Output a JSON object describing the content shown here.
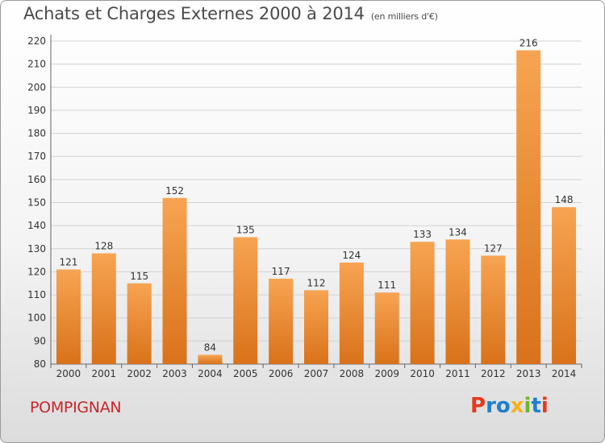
{
  "header": {
    "title": "Achats et Charges Externes 2000 à 2014",
    "subtitle": "(en milliers d'€)"
  },
  "footer": {
    "city": "POMPIGNAN",
    "logo_text": "Proxiti"
  },
  "colors": {
    "bar_light": "#f7a452",
    "bar_dark": "#d9721a",
    "logo_p": "#e8381e",
    "logo_r": "#1e7fcf",
    "logo_o": "#1e7fcf",
    "logo_x": "#f5b21a",
    "logo_i1": "#6cb42d",
    "logo_t": "#1e7fcf",
    "logo_i2": "#e8381e"
  },
  "chart_data": {
    "type": "bar",
    "title": "Achats et Charges Externes 2000 à 2014",
    "subtitle": "(en milliers d'€)",
    "categories": [
      "2000",
      "2001",
      "2002",
      "2003",
      "2004",
      "2005",
      "2006",
      "2007",
      "2008",
      "2009",
      "2010",
      "2011",
      "2012",
      "2013",
      "2014"
    ],
    "values": [
      121,
      128,
      115,
      152,
      84,
      135,
      117,
      112,
      124,
      111,
      133,
      134,
      127,
      216,
      148
    ],
    "ylim": [
      80,
      220
    ],
    "yticks": [
      80,
      90,
      100,
      110,
      120,
      130,
      140,
      150,
      160,
      170,
      180,
      190,
      200,
      210,
      220
    ],
    "grid": true,
    "legend": "none"
  }
}
